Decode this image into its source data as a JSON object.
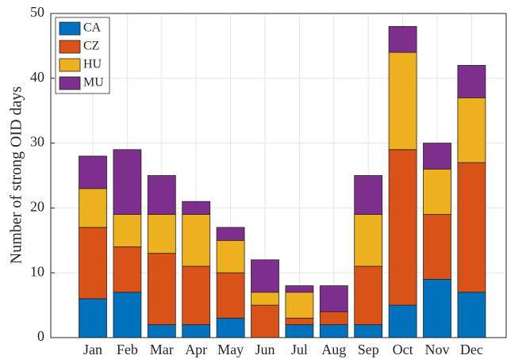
{
  "chart_data": {
    "type": "stacked_bar",
    "ylabel": "Number of strong OID days",
    "categories": [
      "Jan",
      "Feb",
      "Mar",
      "Apr",
      "May",
      "Jun",
      "Jul",
      "Aug",
      "Sep",
      "Oct",
      "Nov",
      "Dec"
    ],
    "series": [
      {
        "name": "CA",
        "color": "#0072BD",
        "values": [
          6,
          7,
          2,
          2,
          3,
          0,
          2,
          2,
          2,
          5,
          9,
          7
        ]
      },
      {
        "name": "CZ",
        "color": "#D95319",
        "values": [
          11,
          7,
          11,
          9,
          7,
          5,
          1,
          2,
          9,
          24,
          10,
          20
        ]
      },
      {
        "name": "HU",
        "color": "#EDB120",
        "values": [
          6,
          5,
          6,
          8,
          5,
          2,
          4,
          0,
          8,
          15,
          7,
          10
        ]
      },
      {
        "name": "MU",
        "color": "#7E2F8E",
        "values": [
          5,
          10,
          6,
          2,
          2,
          5,
          1,
          4,
          6,
          4,
          4,
          5
        ]
      }
    ],
    "ylim": [
      0,
      50
    ],
    "yticks": [
      0,
      10,
      20,
      30,
      40,
      50
    ],
    "grid": true,
    "legend": "top-left"
  }
}
